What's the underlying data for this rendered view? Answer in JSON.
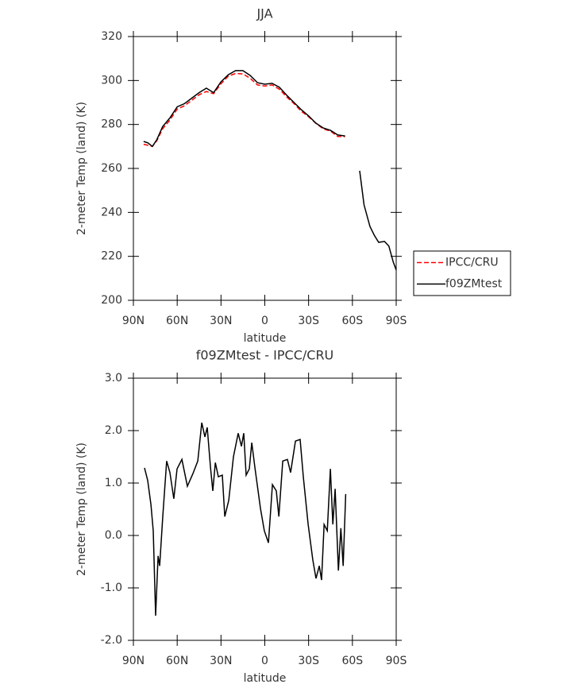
{
  "chart_data": [
    {
      "type": "line",
      "title": "JJA",
      "xlabel": "latitude",
      "ylabel": "2-meter Temp (land) (K)",
      "x": [
        83,
        80,
        77,
        74,
        70,
        65,
        60,
        55,
        50,
        45,
        40,
        35,
        30,
        25,
        20,
        15,
        10,
        5,
        0,
        -5,
        -10,
        -15,
        -20,
        -25,
        -30,
        -35,
        -40,
        -45,
        -50,
        -55,
        -60,
        -65,
        -68,
        -72,
        -75,
        -78,
        -82,
        -85,
        -88,
        -90
      ],
      "series": [
        {
          "name": "IPCC/CRU",
          "color": "#ff0000",
          "style": "dashed",
          "values": [
            271,
            270.5,
            270,
            272.5,
            278,
            282,
            287,
            288.5,
            291,
            293.5,
            295,
            294,
            298.5,
            302,
            303.2,
            303,
            301,
            298,
            297.5,
            298,
            296,
            292.5,
            289.5,
            286,
            283.5,
            280.5,
            278,
            277,
            274.5,
            274.5,
            null,
            null,
            null,
            null,
            null,
            null,
            null,
            null,
            null,
            null
          ]
        },
        {
          "name": "f09ZMtest",
          "color": "#000000",
          "style": "solid",
          "values": [
            272.3,
            271.6,
            270,
            273,
            279,
            283,
            288,
            289.5,
            292,
            294.5,
            296.5,
            294.5,
            299.4,
            302.6,
            304.5,
            304.5,
            302.3,
            299,
            298.3,
            298.7,
            296.9,
            293.3,
            290,
            286.7,
            283.9,
            280.6,
            278.4,
            277.3,
            275.2,
            274.8,
            null,
            258.9,
            243.4,
            233.6,
            229.6,
            226.4,
            226.8,
            224.6,
            217.4,
            213.8
          ]
        }
      ],
      "xlim": [
        90,
        -90
      ],
      "xticks": [
        {
          "value": 90,
          "label": "90N"
        },
        {
          "value": 60,
          "label": "60N"
        },
        {
          "value": 30,
          "label": "30N"
        },
        0,
        {
          "value": -30,
          "label": "30S"
        },
        {
          "value": -60,
          "label": "60S"
        },
        {
          "value": -90,
          "label": "90S"
        }
      ],
      "ylim": [
        200,
        320
      ],
      "yticks": [
        200,
        220,
        240,
        260,
        280,
        300,
        320
      ],
      "legend": "right"
    },
    {
      "type": "line",
      "title": "f09ZMtest - IPCC/CRU",
      "xlabel": "latitude",
      "ylabel": "2-meter Temp (land) (K)",
      "x": [
        82.4,
        80.2,
        78,
        76.4,
        74.8,
        73.1,
        72,
        69.9,
        67.2,
        65,
        62.3,
        60.1,
        56.8,
        53,
        49.2,
        45.9,
        43.2,
        41,
        39.4,
        37.2,
        35.6,
        33.9,
        31.8,
        29.1,
        27.4,
        24.7,
        21.5,
        18.2,
        16,
        14.4,
        12.8,
        10.6,
        8.9,
        6.8,
        3,
        0.3,
        -2.5,
        -5.2,
        -7.9,
        -9.6,
        -12.3,
        -15.5,
        -17.7,
        -21,
        -24.2,
        -26.4,
        -29.7,
        -32.9,
        -35.1,
        -37.3,
        -38.9,
        -40.6,
        -42.8,
        -44.9,
        -46.6,
        -48.2,
        -50.4,
        -52.1,
        -53.7,
        -55.4
      ],
      "series": [
        {
          "name": "f09ZMtest - IPCC/CRU",
          "color": "#000000",
          "style": "solid",
          "values": [
            1.29,
            1.05,
            0.59,
            0.09,
            -1.53,
            -0.39,
            -0.58,
            0.36,
            1.42,
            1.2,
            0.7,
            1.27,
            1.45,
            0.94,
            1.18,
            1.42,
            2.15,
            1.88,
            2.06,
            1.3,
            0.85,
            1.39,
            1.12,
            1.15,
            0.36,
            0.67,
            1.5,
            1.95,
            1.7,
            1.95,
            1.15,
            1.27,
            1.77,
            1.3,
            0.52,
            0.09,
            -0.14,
            0.97,
            0.85,
            0.36,
            1.42,
            1.45,
            1.2,
            1.8,
            1.83,
            1.12,
            0.21,
            -0.47,
            -0.82,
            -0.58,
            -0.85,
            0.21,
            0.09,
            1.27,
            0.21,
            0.89,
            -0.67,
            0.14,
            -0.58,
            0.79
          ]
        }
      ],
      "xlim": [
        90,
        -90
      ],
      "xticks": [
        {
          "value": 90,
          "label": "90N"
        },
        {
          "value": 60,
          "label": "60N"
        },
        {
          "value": 30,
          "label": "30N"
        },
        0,
        {
          "value": -30,
          "label": "30S"
        },
        {
          "value": -60,
          "label": "60S"
        },
        {
          "value": -90,
          "label": "90S"
        }
      ],
      "ylim": [
        -2,
        3
      ],
      "yticks": [
        {
          "value": -2,
          "label": "-2.0"
        },
        {
          "value": -1,
          "label": "-1.0"
        },
        {
          "value": 0,
          "label": "0.0"
        },
        {
          "value": 1,
          "label": "1.0"
        },
        {
          "value": 2,
          "label": "2.0"
        },
        {
          "value": 3,
          "label": "3.0"
        }
      ]
    }
  ]
}
